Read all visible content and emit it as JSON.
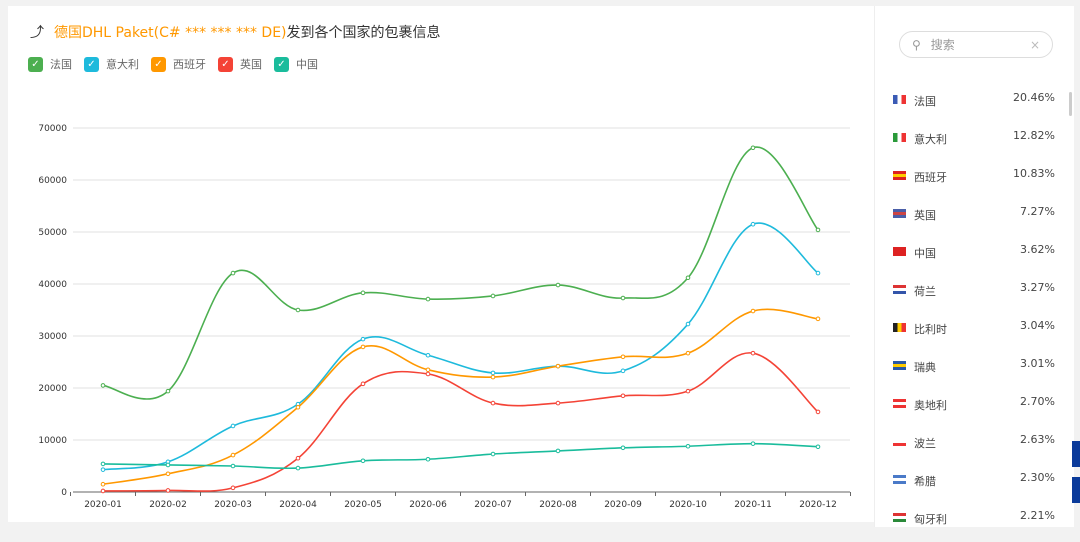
{
  "header": {
    "icon": "trend-icon",
    "title_highlight": "德国DHL Paket(C# *** *** *** DE)",
    "title_rest": "发到各个国家的包裹信息"
  },
  "search": {
    "placeholder": "搜索",
    "clear_icon": "×"
  },
  "countries": [
    {
      "name": "法国",
      "pct": "20.46%",
      "flag": [
        "#3b5bb5",
        "#fff",
        "#e33"
      ]
    },
    {
      "name": "意大利",
      "pct": "12.82%",
      "flag": [
        "#2a9a3a",
        "#fff",
        "#e33"
      ]
    },
    {
      "name": "西班牙",
      "pct": "10.83%",
      "flag": [
        "#d22",
        "#fc0",
        "#d22"
      ]
    },
    {
      "name": "英国",
      "pct": "7.27%",
      "flag": [
        "#4a5ea8",
        "#c44",
        "#4a5ea8"
      ]
    },
    {
      "name": "中国",
      "pct": "3.62%",
      "flag": [
        "#d22",
        "#d22",
        "#d22"
      ]
    },
    {
      "name": "荷兰",
      "pct": "3.27%",
      "flag": [
        "#d33",
        "#fff",
        "#3355aa"
      ]
    },
    {
      "name": "比利时",
      "pct": "3.04%",
      "flag": [
        "#222",
        "#fc0",
        "#e33"
      ]
    },
    {
      "name": "瑞典",
      "pct": "3.01%",
      "flag": [
        "#2a5aa8",
        "#fc0",
        "#2a5aa8"
      ]
    },
    {
      "name": "奥地利",
      "pct": "2.70%",
      "flag": [
        "#e33",
        "#fff",
        "#e33"
      ]
    },
    {
      "name": "波兰",
      "pct": "2.63%",
      "flag": [
        "#fff",
        "#fff",
        "#e33"
      ]
    },
    {
      "name": "希腊",
      "pct": "2.30%",
      "flag": [
        "#4a7ac8",
        "#fff",
        "#4a7ac8"
      ]
    },
    {
      "name": "匈牙利",
      "pct": "2.21%",
      "flag": [
        "#d33",
        "#fff",
        "#2a8a3a"
      ]
    }
  ],
  "chart_data": {
    "type": "line",
    "title": "德国DHL Paket(C# *** *** *** DE)发到各个国家的包裹信息",
    "categories": [
      "2020-01",
      "2020-02",
      "2020-03",
      "2020-04",
      "2020-05",
      "2020-06",
      "2020-07",
      "2020-08",
      "2020-09",
      "2020-10",
      "2020-11",
      "2020-12"
    ],
    "ylim": [
      0,
      70000
    ],
    "yticks": [
      0,
      10000,
      20000,
      30000,
      40000,
      50000,
      60000,
      70000
    ],
    "grid": true,
    "legend": "top-left",
    "smooth": true,
    "series": [
      {
        "name": "法国",
        "color": "#4caf50",
        "values": [
          20500,
          19400,
          42100,
          35000,
          38300,
          37100,
          37700,
          39800,
          37300,
          41200,
          66200,
          50400
        ]
      },
      {
        "name": "意大利",
        "color": "#1ebadc",
        "values": [
          4300,
          5800,
          12700,
          16900,
          29400,
          26300,
          22900,
          24200,
          23300,
          32300,
          51500,
          42100
        ]
      },
      {
        "name": "西班牙",
        "color": "#ff9800",
        "values": [
          1500,
          3500,
          7100,
          16300,
          27900,
          23500,
          22100,
          24200,
          26000,
          26700,
          34800,
          33300
        ]
      },
      {
        "name": "英国",
        "color": "#f44336",
        "values": [
          200,
          300,
          800,
          6500,
          20800,
          22700,
          17100,
          17100,
          18500,
          19400,
          26700,
          15400
        ]
      },
      {
        "name": "中国",
        "color": "#1abc9c",
        "values": [
          5400,
          5200,
          5000,
          4600,
          6000,
          6300,
          7300,
          7900,
          8500,
          8800,
          9300,
          8700
        ]
      }
    ]
  }
}
